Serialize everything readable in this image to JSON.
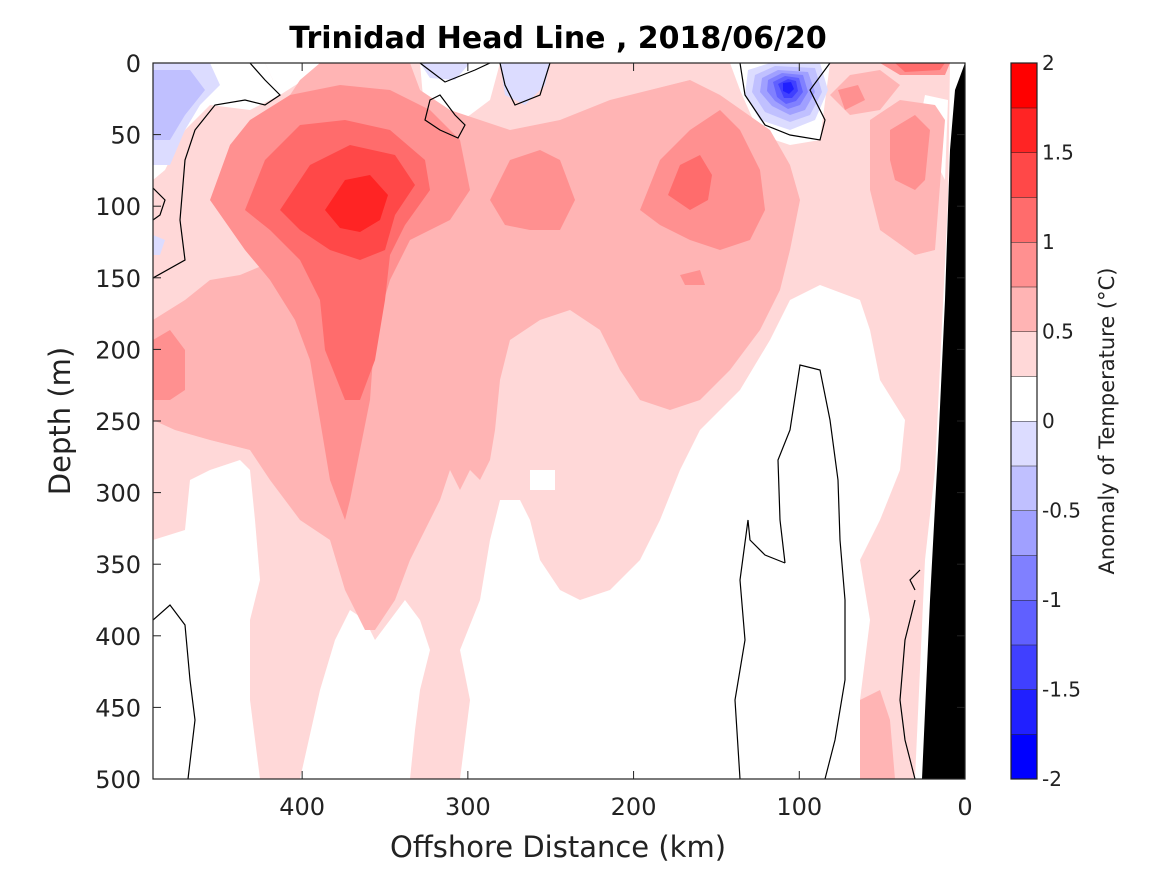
{
  "chart_data": {
    "type": "heatmap",
    "title": "Trinidad Head Line , 2018/06/20",
    "xlabel": "Offshore Distance (km)",
    "ylabel": "Depth (m)",
    "xlim": [
      490,
      0
    ],
    "ylim": [
      0,
      500
    ],
    "y_reversed": true,
    "x_reversed": true,
    "xticks": [
      400,
      300,
      200,
      100,
      0
    ],
    "yticks": [
      0,
      50,
      100,
      150,
      200,
      250,
      300,
      350,
      400,
      450,
      500
    ],
    "colorbar": {
      "label": "Anomaly of Temperature (°C)",
      "range": [
        -2,
        2
      ],
      "step": 0.25,
      "ticks": [
        2,
        1.5,
        1,
        0.5,
        0,
        -0.5,
        -1,
        -1.5,
        -2
      ],
      "colors": [
        "#0000ff",
        "#2020ff",
        "#4040ff",
        "#6060ff",
        "#8080ff",
        "#a0a0ff",
        "#c0c0ff",
        "#dcdcff",
        "#ffffff",
        "#ffffff",
        "#ffd8d8",
        "#ffb4b4",
        "#ff9090",
        "#ff6c6c",
        "#ff4848",
        "#ff2424",
        "#ff0000"
      ],
      "level_boundaries": [
        -2,
        -1.75,
        -1.5,
        -1.25,
        -1,
        -0.75,
        -0.5,
        -0.25,
        0,
        0.25,
        0.5,
        0.75,
        1,
        1.25,
        1.5,
        1.75,
        2
      ]
    },
    "grid": false,
    "shelf_color": "#000000",
    "anomaly_features": [
      {
        "kind": "warm_core",
        "x_km": 370,
        "depth_m": 95,
        "peak_anomaly": 1.6
      },
      {
        "kind": "warm",
        "x_km": 170,
        "depth_m": 85,
        "peak_anomaly": 1.0
      },
      {
        "kind": "warm",
        "x_km": 250,
        "depth_m": 105,
        "peak_anomaly": 0.8
      },
      {
        "kind": "warm",
        "x_km": 40,
        "depth_m": 90,
        "peak_anomaly": 0.9
      },
      {
        "kind": "warm",
        "x_km": 30,
        "depth_m": 3,
        "peak_anomaly": 1.3
      },
      {
        "kind": "warm",
        "x_km": 70,
        "depth_m": 25,
        "peak_anomaly": 1.0
      },
      {
        "kind": "warm",
        "x_km": 478,
        "depth_m": 215,
        "peak_anomaly": 0.9
      },
      {
        "kind": "cold_core",
        "x_km": 108,
        "depth_m": 12,
        "peak_anomaly": -1.75
      },
      {
        "kind": "cold",
        "x_km": 470,
        "depth_m": 30,
        "peak_anomaly": -0.6
      },
      {
        "kind": "cold",
        "x_km": 320,
        "depth_m": 12,
        "peak_anomaly": -0.3
      },
      {
        "kind": "cold",
        "x_km": 270,
        "depth_m": 8,
        "peak_anomaly": -0.3
      }
    ]
  }
}
